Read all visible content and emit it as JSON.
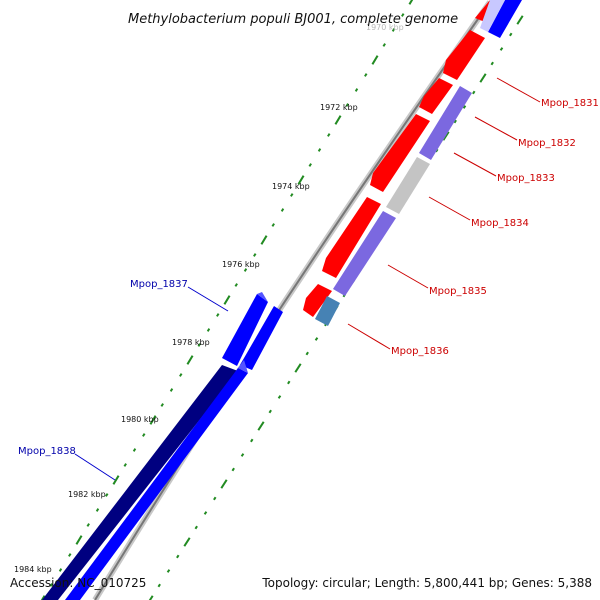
{
  "title": "Methylobacterium populi BJ001, complete genome",
  "footer": {
    "accession": "Accession: NC_010725",
    "summary": "Topology: circular; Length: 5,800,441 bp; Genes: 5,388"
  },
  "scale": {
    "faded_label": "1970 kbp",
    "labels": [
      "1972 kbp",
      "1974 kbp",
      "1976 kbp",
      "1978 kbp",
      "1980 kbp",
      "1982 kbp",
      "1984 kbp"
    ]
  },
  "genes": [
    {
      "name": "Mpop_1831",
      "color": "#cc0000"
    },
    {
      "name": "Mpop_1832",
      "color": "#cc0000"
    },
    {
      "name": "Mpop_1833",
      "color": "#cc0000"
    },
    {
      "name": "Mpop_1834",
      "color": "#cc0000"
    },
    {
      "name": "Mpop_1835",
      "color": "#cc0000"
    },
    {
      "name": "Mpop_1836",
      "color": "#cc0000"
    },
    {
      "name": "Mpop_1837",
      "color": "#0000aa"
    },
    {
      "name": "Mpop_1838",
      "color": "#0000aa"
    }
  ],
  "colors": {
    "forward_cds": "#ff0000",
    "reverse_cds": "#0000ff",
    "forward_feature": "#7b68e0",
    "reverse_feature": "#000080",
    "backbone": "#888888",
    "tick": "#228b22"
  }
}
